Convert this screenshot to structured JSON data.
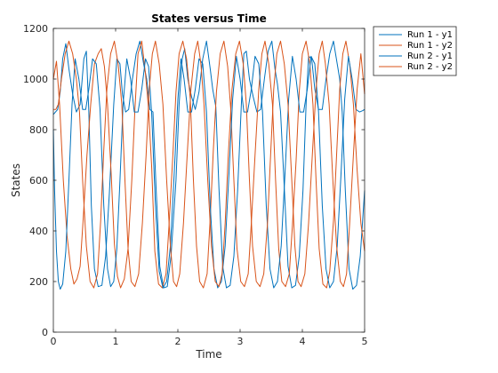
{
  "chart_data": {
    "type": "line",
    "title": "States versus Time",
    "xlabel": "Time",
    "ylabel": "States",
    "xlim": [
      0,
      5
    ],
    "ylim": [
      0,
      1200
    ],
    "xticks": [
      "0",
      "1",
      "2",
      "3",
      "4",
      "5"
    ],
    "yticks": [
      "0",
      "200",
      "400",
      "600",
      "800",
      "1000",
      "1200"
    ],
    "grid": false,
    "legend_position": "top-right-outside",
    "series": [
      {
        "name": "Run 1 - y1",
        "color": "#0072BD",
        "x": [
          0,
          0.07,
          0.11,
          0.15,
          0.2,
          0.25,
          0.31,
          0.37,
          0.43,
          0.49,
          0.53,
          0.57,
          0.61,
          0.66,
          0.72,
          0.78,
          0.84,
          0.9,
          0.97,
          1.02,
          1.07,
          1.11,
          1.16,
          1.21,
          1.27,
          1.33,
          1.39,
          1.45,
          1.5,
          1.55,
          1.6,
          1.65,
          1.71,
          1.77,
          1.83,
          1.89,
          1.97,
          2.02,
          2.07,
          2.11,
          2.16,
          2.22,
          2.28,
          2.34,
          2.4,
          2.46,
          2.52,
          2.56,
          2.61,
          2.66,
          2.72,
          2.78,
          2.84,
          2.9,
          2.96,
          3.02,
          3.06,
          3.1,
          3.15,
          3.21,
          3.27,
          3.33,
          3.39,
          3.45,
          3.51,
          3.56,
          3.6,
          3.65,
          3.71,
          3.77,
          3.83,
          3.89,
          3.95,
          4.01,
          4.06,
          4.1,
          4.15,
          4.2,
          4.26,
          4.32,
          4.38,
          4.44,
          4.5,
          4.56,
          4.6,
          4.64,
          4.69,
          4.75,
          4.81,
          4.87,
          4.93,
          5.0
        ],
        "y": [
          860,
          880,
          950,
          1080,
          1140,
          1040,
          940,
          870,
          900,
          1080,
          1110,
          870,
          500,
          250,
          180,
          185,
          300,
          550,
          900,
          1080,
          1060,
          940,
          870,
          880,
          1000,
          1100,
          1150,
          1060,
          1000,
          880,
          870,
          570,
          260,
          175,
          180,
          300,
          600,
          900,
          1080,
          1120,
          1000,
          930,
          880,
          950,
          1080,
          1150,
          1040,
          960,
          890,
          570,
          260,
          175,
          185,
          300,
          560,
          900,
          1100,
          1110,
          1000,
          930,
          870,
          880,
          1000,
          1110,
          1150,
          1040,
          980,
          870,
          570,
          260,
          175,
          185,
          300,
          560,
          900,
          1090,
          1080,
          960,
          880,
          880,
          1000,
          1100,
          1150,
          1060,
          1000,
          870,
          560,
          250,
          170,
          185,
          300,
          560
        ]
      },
      {
        "name": "Run 1 - y2",
        "color": "#D95319",
        "x": [
          0,
          0.05,
          0.1,
          0.16,
          0.22,
          0.28,
          0.33,
          0.38,
          0.43,
          0.48,
          0.54,
          0.6,
          0.66,
          0.72,
          0.77,
          0.82,
          0.87,
          0.93,
          0.98,
          1.03,
          1.08,
          1.14,
          1.2,
          1.26,
          1.31,
          1.36,
          1.42,
          1.48,
          1.53,
          1.58,
          1.63,
          1.69,
          1.75,
          1.81,
          1.86,
          1.92,
          1.97,
          2.02,
          2.08,
          2.14,
          2.2,
          2.25,
          2.3,
          2.35,
          2.41,
          2.47,
          2.52,
          2.57,
          2.62,
          2.68,
          2.74,
          2.8,
          2.85,
          2.9,
          2.95,
          3.01,
          3.07,
          3.13,
          3.18,
          3.24,
          3.3,
          3.35,
          3.4,
          3.46,
          3.52,
          3.57,
          3.62,
          3.67,
          3.73,
          3.79,
          3.84,
          3.9,
          3.95,
          4.0,
          4.06,
          4.12,
          4.17,
          4.22,
          4.27,
          4.33,
          4.39,
          4.44,
          4.5,
          4.55,
          4.6,
          4.65,
          4.7,
          4.76,
          4.82,
          4.88,
          4.94,
          5.0
        ],
        "y": [
          1000,
          1070,
          900,
          600,
          380,
          250,
          190,
          210,
          260,
          450,
          700,
          900,
          1060,
          1100,
          1120,
          1050,
          900,
          620,
          350,
          220,
          175,
          210,
          330,
          600,
          880,
          1100,
          1150,
          1020,
          880,
          650,
          320,
          190,
          175,
          230,
          430,
          700,
          950,
          1100,
          1150,
          1080,
          920,
          600,
          340,
          200,
          175,
          230,
          450,
          720,
          950,
          1100,
          1150,
          1050,
          880,
          600,
          330,
          200,
          180,
          230,
          430,
          700,
          960,
          1100,
          1150,
          1060,
          900,
          600,
          330,
          200,
          180,
          230,
          420,
          680,
          950,
          1100,
          1150,
          1060,
          900,
          600,
          330,
          190,
          175,
          240,
          440,
          700,
          960,
          1100,
          1150,
          1060,
          900,
          640,
          430,
          320
        ]
      },
      {
        "name": "Run 2 - y1",
        "color": "#0072BD",
        "x": [
          0,
          0.02,
          0.05,
          0.08,
          0.11,
          0.15,
          0.2,
          0.25,
          0.3,
          0.35,
          0.41,
          0.47,
          0.52,
          0.57,
          0.63,
          0.69,
          0.75,
          0.81,
          0.87,
          0.92,
          0.97,
          1.02,
          1.07,
          1.12,
          1.18,
          1.24,
          1.3,
          1.36,
          1.42,
          1.48,
          1.53,
          1.58,
          1.64,
          1.7,
          1.76,
          1.82,
          1.88,
          1.94,
          2.0,
          2.05,
          2.1,
          2.16,
          2.22,
          2.28,
          2.34,
          2.4,
          2.46,
          2.52,
          2.58,
          2.64,
          2.7,
          2.76,
          2.82,
          2.88,
          2.94,
          3.0,
          3.06,
          3.12,
          3.18,
          3.24,
          3.3,
          3.36,
          3.42,
          3.48,
          3.54,
          3.6,
          3.66,
          3.72,
          3.78,
          3.84,
          3.9,
          3.96,
          4.02,
          4.08,
          4.14,
          4.2,
          4.26,
          4.32,
          4.38,
          4.44,
          4.5,
          4.56,
          4.62,
          4.68,
          4.74,
          4.8,
          4.86,
          4.92,
          4.97,
          5.0
        ],
        "y": [
          800,
          560,
          320,
          200,
          170,
          190,
          320,
          600,
          900,
          1080,
          1000,
          880,
          880,
          960,
          1080,
          1060,
          880,
          500,
          250,
          180,
          200,
          330,
          600,
          900,
          1080,
          1000,
          870,
          870,
          960,
          1080,
          1050,
          860,
          500,
          240,
          175,
          200,
          340,
          620,
          920,
          1080,
          1000,
          870,
          870,
          960,
          1080,
          1060,
          870,
          500,
          250,
          175,
          200,
          340,
          620,
          920,
          1090,
          1000,
          870,
          870,
          960,
          1090,
          1060,
          870,
          500,
          250,
          175,
          200,
          340,
          620,
          920,
          1090,
          1000,
          870,
          870,
          960,
          1090,
          1060,
          870,
          500,
          250,
          175,
          200,
          340,
          620,
          920,
          1090,
          1000,
          880,
          870,
          875,
          880
        ]
      },
      {
        "name": "Run 2 - y2",
        "color": "#D95319",
        "x": [
          0,
          0.04,
          0.08,
          0.13,
          0.19,
          0.25,
          0.31,
          0.37,
          0.42,
          0.47,
          0.53,
          0.59,
          0.65,
          0.71,
          0.76,
          0.81,
          0.86,
          0.92,
          0.98,
          1.04,
          1.1,
          1.15,
          1.2,
          1.25,
          1.31,
          1.37,
          1.43,
          1.49,
          1.54,
          1.59,
          1.64,
          1.7,
          1.76,
          1.82,
          1.88,
          1.93,
          1.98,
          2.03,
          2.09,
          2.15,
          2.21,
          2.27,
          2.32,
          2.37,
          2.42,
          2.48,
          2.54,
          2.6,
          2.66,
          2.71,
          2.76,
          2.81,
          2.87,
          2.93,
          2.99,
          3.05,
          3.1,
          3.15,
          3.2,
          3.26,
          3.32,
          3.38,
          3.44,
          3.49,
          3.54,
          3.59,
          3.65,
          3.71,
          3.77,
          3.83,
          3.88,
          3.93,
          3.98,
          4.04,
          4.1,
          4.16,
          4.22,
          4.27,
          4.32,
          4.37,
          4.43,
          4.49,
          4.55,
          4.61,
          4.66,
          4.71,
          4.76,
          4.82,
          4.88,
          4.94,
          5.0
        ],
        "y": [
          880,
          880,
          900,
          1000,
          1100,
          1150,
          1100,
          1000,
          870,
          600,
          340,
          200,
          175,
          230,
          440,
          720,
          960,
          1100,
          1150,
          1060,
          900,
          600,
          330,
          200,
          180,
          230,
          430,
          700,
          960,
          1100,
          1150,
          1060,
          900,
          600,
          340,
          200,
          180,
          230,
          430,
          700,
          960,
          1100,
          1150,
          1060,
          900,
          600,
          340,
          200,
          180,
          230,
          430,
          700,
          960,
          1100,
          1150,
          1060,
          900,
          600,
          340,
          200,
          180,
          230,
          430,
          700,
          960,
          1100,
          1150,
          1060,
          900,
          600,
          340,
          200,
          180,
          230,
          430,
          700,
          960,
          1100,
          1150,
          1060,
          900,
          600,
          340,
          200,
          180,
          230,
          430,
          700,
          960,
          1100,
          940
        ]
      }
    ]
  }
}
